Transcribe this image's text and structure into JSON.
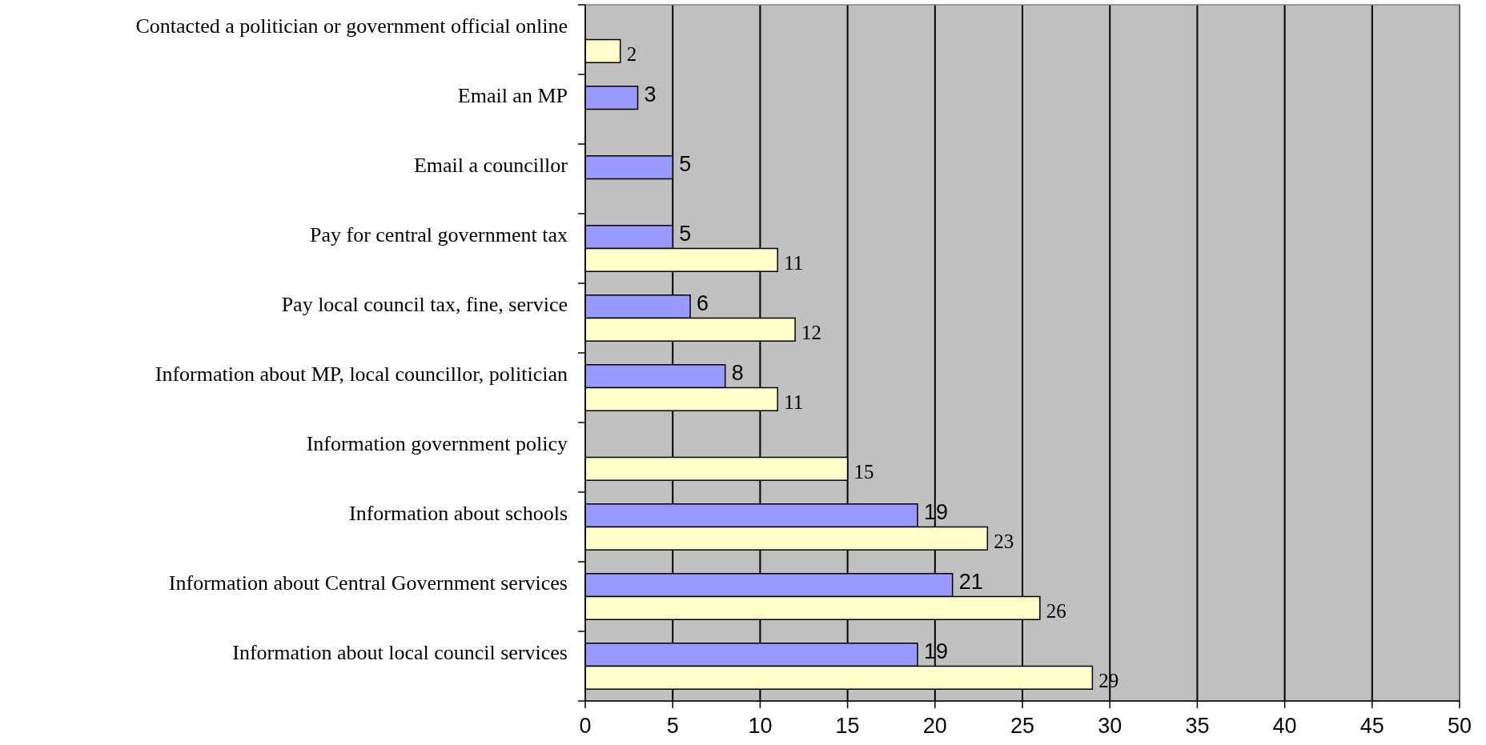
{
  "chart_data": {
    "type": "bar",
    "orientation": "horizontal",
    "categories": [
      "Contacted a politician or government official online",
      "Email an MP",
      "Email a councillor",
      "Pay for central government tax",
      "Pay local council tax, fine, service",
      "Information about MP, local councillor, politician",
      "Information government policy",
      "Information about schools",
      "Information about Central Government services",
      "Information about local council services"
    ],
    "series": [
      {
        "color": "#9999ff",
        "values": [
          null,
          3,
          5,
          5,
          6,
          8,
          null,
          19,
          21,
          19
        ]
      },
      {
        "color": "#ffffcc",
        "values": [
          2,
          null,
          null,
          11,
          12,
          11,
          15,
          23,
          26,
          29
        ]
      }
    ],
    "xlim": [
      0,
      50
    ],
    "xticks": [
      0,
      5,
      10,
      15,
      20,
      25,
      30,
      35,
      40,
      45,
      50
    ],
    "grid": "x",
    "data_labels": true
  }
}
